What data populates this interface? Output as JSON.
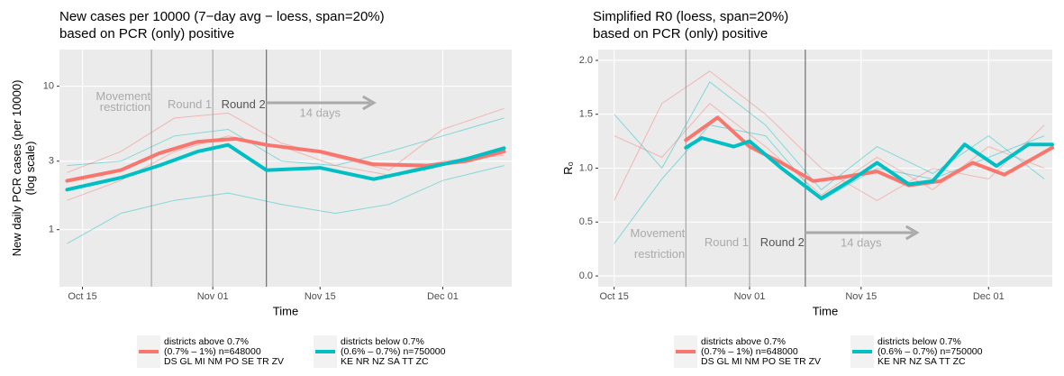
{
  "chart_data": [
    {
      "type": "line",
      "title": "New cases per 10000 (7−day avg − loess, span=20%)",
      "subtitle": "based on PCR (only) positive",
      "x_label": "Time",
      "y_label": [
        "New daily PCR cases (per 10000)",
        "(log scale)"
      ],
      "log_y": true,
      "ylim": [
        0.4,
        18
      ],
      "yticks": [
        1,
        3,
        10
      ],
      "xlim": [
        "Oct 12",
        "Dec 10"
      ],
      "xticks": [
        "Oct 15",
        "Nov 01",
        "Nov 15",
        "Dec 01"
      ],
      "grid": true,
      "vlines": [
        {
          "x": "Oct 24",
          "label": [
            "Movement",
            "restriction"
          ]
        },
        {
          "x": "Nov 01",
          "label": [
            "Round 1"
          ]
        },
        {
          "x": "Nov 08",
          "label": [
            "Round 2"
          ]
        }
      ],
      "arrow": {
        "from": "Nov 08",
        "to": "Nov 22",
        "label": "14 days"
      },
      "district_x": [
        "Oct 13",
        "Oct 20",
        "Oct 27",
        "Nov 03",
        "Nov 10",
        "Nov 17",
        "Nov 24",
        "Dec 01",
        "Dec 09"
      ],
      "district_lines": [
        {
          "color": "#f8766d",
          "values": [
            2.5,
            3.5,
            6,
            6.5,
            4,
            3.2,
            2.6,
            5,
            7
          ]
        },
        {
          "color": "#f8766d",
          "values": [
            1.6,
            2.2,
            3.5,
            4.5,
            3.8,
            2.8,
            2.4,
            3,
            3.3
          ]
        },
        {
          "color": "#00bfc4",
          "values": [
            0.8,
            1.3,
            1.6,
            1.8,
            1.5,
            1.3,
            1.5,
            2.2,
            2.8
          ]
        },
        {
          "color": "#00bfc4",
          "values": [
            2.8,
            3,
            4.5,
            5,
            3,
            2.8,
            3.5,
            4.5,
            6
          ]
        }
      ],
      "series": [
        {
          "name": "districts above 0.7%",
          "legend_detail": [
            "(0.7% – 1%) n=648000",
            "DS GL MI NM PO SE TR ZV"
          ],
          "color": "#f8766d",
          "x": [
            "Oct 13",
            "Oct 20",
            "Oct 25",
            "Oct 30",
            "Nov 04",
            "Nov 08",
            "Nov 15",
            "Nov 22",
            "Nov 29",
            "Dec 04",
            "Dec 09"
          ],
          "values": [
            2.19,
            2.6,
            3.4,
            4.1,
            4.3,
            3.9,
            3.5,
            2.85,
            2.8,
            3.0,
            3.5
          ]
        },
        {
          "name": "districts below 0.7%",
          "legend_detail": [
            "(0.6% – 0.7%) n=750000",
            "KE NR NZ SA TT ZC"
          ],
          "color": "#00bfc4",
          "x": [
            "Oct 13",
            "Oct 20",
            "Oct 25",
            "Oct 30",
            "Nov 03",
            "Nov 08",
            "Nov 15",
            "Nov 22",
            "Nov 29",
            "Dec 04",
            "Dec 09"
          ],
          "values": [
            1.9,
            2.3,
            2.8,
            3.5,
            3.9,
            2.6,
            2.7,
            2.25,
            2.7,
            3.1,
            3.7
          ]
        }
      ]
    },
    {
      "type": "line",
      "title": "Simplified R0 (loess, span=20%)",
      "subtitle": "based on PCR (only) positive",
      "x_label": "Time",
      "y_label": [
        "R₀"
      ],
      "log_y": false,
      "ylim": [
        -0.1,
        2.1
      ],
      "yticks": [
        {
          "value": 0,
          "label": "0.0"
        },
        0.5,
        {
          "value": 1,
          "label": "1.0"
        },
        1.5,
        {
          "value": 2,
          "label": "2.0"
        }
      ],
      "xlim": [
        "Oct 13",
        "Dec 09"
      ],
      "xticks": [
        "Oct 15",
        "Nov 01",
        "Nov 15",
        "Dec 01"
      ],
      "grid": true,
      "vlines": [
        {
          "x": "Oct 24",
          "label": [
            "Movement",
            "restriction"
          ]
        },
        {
          "x": "Nov 01",
          "label": [
            "Round 1"
          ]
        },
        {
          "x": "Nov 08",
          "label": [
            "Round 2"
          ]
        }
      ],
      "arrow": {
        "from": "Nov 08",
        "to": "Nov 22",
        "label": "14 days"
      },
      "district_x": [
        "Oct 15",
        "Oct 21",
        "Oct 27",
        "Nov 03",
        "Nov 10",
        "Nov 17",
        "Nov 24",
        "Dec 01",
        "Dec 08"
      ],
      "district_lines": [
        {
          "color": "#f8766d",
          "values": [
            0.7,
            1.6,
            1.9,
            1.5,
            1.0,
            0.7,
            1.0,
            0.9,
            1.4
          ]
        },
        {
          "color": "#f8766d",
          "values": [
            1.3,
            1.1,
            1.6,
            1.2,
            0.75,
            1.1,
            0.8,
            1.2,
            1.0
          ]
        },
        {
          "color": "#00bfc4",
          "values": [
            1.5,
            1.0,
            1.8,
            1.4,
            0.8,
            1.2,
            0.95,
            1.3,
            0.9
          ]
        },
        {
          "color": "#00bfc4",
          "values": [
            0.3,
            0.9,
            1.4,
            1.3,
            0.7,
            1.0,
            0.9,
            1.1,
            1.3
          ]
        }
      ],
      "series": [
        {
          "name": "districts above 0.7%",
          "legend_detail": [
            "(0.7% – 1%) n=648000",
            "DS GL MI NM PO SE TR ZV"
          ],
          "color": "#f8766d",
          "x": [
            "Oct 24",
            "Oct 28",
            "Nov 01",
            "Nov 05",
            "Nov 09",
            "Nov 13",
            "Nov 17",
            "Nov 21",
            "Nov 25",
            "Nov 29",
            "Dec 03",
            "Dec 09"
          ],
          "values": [
            1.26,
            1.47,
            1.2,
            1.05,
            0.88,
            0.92,
            0.97,
            0.84,
            0.88,
            1.05,
            0.94,
            1.19
          ]
        },
        {
          "name": "districts below 0.7%",
          "legend_detail": [
            "(0.6% – 0.7%) n=750000",
            "KE NR NZ SA TT ZC"
          ],
          "color": "#00bfc4",
          "x": [
            "Oct 24",
            "Oct 26",
            "Oct 30",
            "Nov 01",
            "Nov 05",
            "Nov 10",
            "Nov 14",
            "Nov 17",
            "Nov 21",
            "Nov 24",
            "Nov 28",
            "Dec 02",
            "Dec 06",
            "Dec 09"
          ],
          "values": [
            1.19,
            1.28,
            1.2,
            1.25,
            1.0,
            0.72,
            0.9,
            1.05,
            0.85,
            0.88,
            1.22,
            1.02,
            1.22,
            1.22
          ]
        }
      ]
    }
  ]
}
